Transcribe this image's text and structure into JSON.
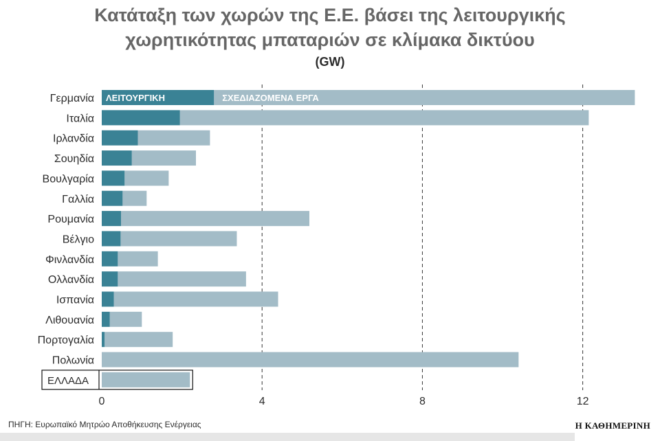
{
  "title": {
    "line1": "Κατάταξη των χωρών της Ε.Ε. βάσει της λειτουργικής",
    "line2": "χωρητικότητας μπαταριών σε κλίμακα δικτύου"
  },
  "unit": "(GW)",
  "source": "ΠΗΓΗ: Ευρωπαϊκό Μητρώο Αποθήκευσης Ενέργειας",
  "brand": "Η ΚΑΘΗΜΕΡΙΝΗ",
  "colors": {
    "operational": "#3a8295",
    "planned": "#a3bcc7",
    "grid": "#333333",
    "text": "#2b2b2b"
  },
  "chart_data": {
    "type": "bar",
    "orientation": "horizontal",
    "stacked": true,
    "categories": [
      "Γερμανία",
      "Ιταλία",
      "Ιρλανδία",
      "Σουηδία",
      "Βουλγαρία",
      "Γαλλία",
      "Ρουμανία",
      "Βέλγιο",
      "Φινλανδία",
      "Ολλανδία",
      "Ισπανία",
      "Λιθουανία",
      "Πορτογαλία",
      "Πολωνία",
      "ΕΛΛΑΔΑ"
    ],
    "highlight_category": "ΕΛΛΑΔΑ",
    "series": [
      {
        "name": "ΛΕΙΤΟΥΡΓΙΚΗ",
        "values": [
          2.8,
          1.95,
          0.9,
          0.75,
          0.57,
          0.52,
          0.48,
          0.47,
          0.4,
          0.4,
          0.3,
          0.2,
          0.07,
          0.0,
          0.0
        ]
      },
      {
        "name": "ΣΧΕΔΙΑΖΟΜΕΝΑ ΕΡΓΑ",
        "values": [
          10.5,
          10.2,
          1.8,
          1.6,
          1.1,
          0.6,
          4.7,
          2.9,
          1.0,
          3.2,
          4.1,
          0.8,
          1.7,
          10.4,
          2.2
        ]
      }
    ],
    "xlim": [
      0,
      13.3
    ],
    "xticks": [
      0,
      4,
      8,
      12
    ],
    "xtick_labels": [
      "0",
      "4",
      "8",
      "12"
    ],
    "grid": "vertical dashed lines at 4, 8, 12",
    "legend": "inside first bar"
  }
}
